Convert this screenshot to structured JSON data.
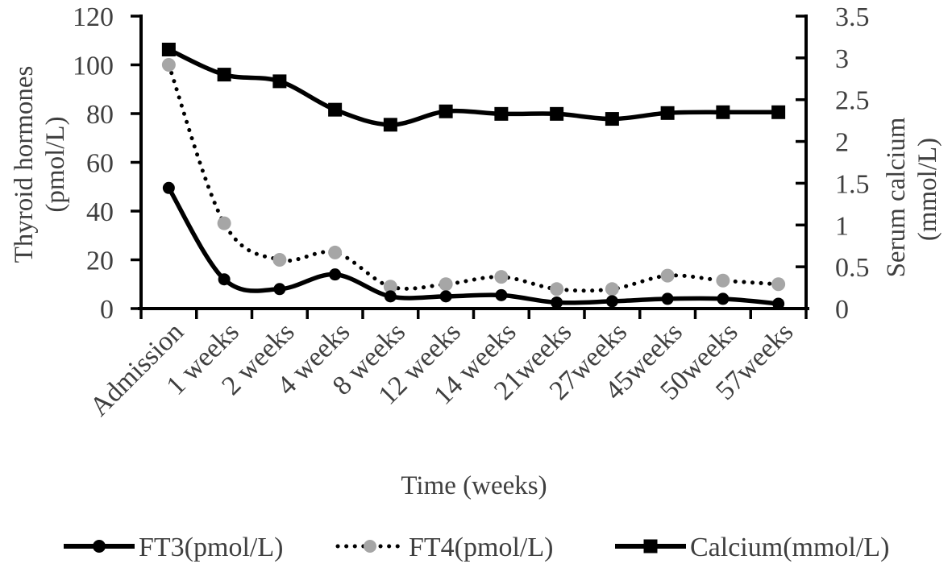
{
  "chart_data": {
    "type": "line",
    "title": "",
    "categories": [
      "Admission",
      "1 weeks",
      "2 weeks",
      "4 weeks",
      "8 weeks",
      "12 weeks",
      "14 weeks",
      "21weeks",
      "27weeks",
      "45weeks",
      "50weeks",
      "57weeks"
    ],
    "xlabel": "Time  (weeks)",
    "y_axis_left": {
      "title_line1": "Thyroid hormones",
      "title_line2": "(pmol/L)",
      "min": 0,
      "max": 120,
      "tick_interval": 20,
      "tick_labels": [
        "0",
        "20",
        "40",
        "60",
        "80",
        "100",
        "120"
      ]
    },
    "y_axis_right": {
      "title_line1": "Serum calcium",
      "title_line2": "(mmol/L)",
      "min": 0,
      "max": 3.5,
      "tick_interval": 0.5,
      "tick_labels": [
        "0",
        "0.5",
        "1",
        "1.5",
        "2",
        "2.5",
        "3",
        "3.5"
      ]
    },
    "series": [
      {
        "name": "FT3(pmol/L)",
        "axis": "left",
        "line_style": "solid",
        "marker": "circle",
        "line_color": "#000000",
        "marker_color": "#000000",
        "values": [
          49.5,
          12,
          8,
          14,
          5,
          5,
          5.5,
          2.5,
          3,
          4,
          4,
          2
        ]
      },
      {
        "name": "FT4(pmol/L)",
        "axis": "left",
        "line_style": "dotted",
        "marker": "circle",
        "line_color": "#000000",
        "marker_color": "#a6a6a6",
        "values": [
          100,
          35,
          20,
          23,
          9,
          10,
          13,
          8,
          8,
          13.5,
          11.5,
          10
        ]
      },
      {
        "name": "Calcium(mmol/L)",
        "axis": "right",
        "line_style": "solid",
        "marker": "square",
        "line_color": "#000000",
        "marker_color": "#000000",
        "values": [
          3.1,
          2.8,
          2.72,
          2.38,
          2.2,
          2.36,
          2.33,
          2.33,
          2.27,
          2.34,
          2.35,
          2.35
        ]
      }
    ],
    "legend": {
      "position": "bottom",
      "entries": [
        "FT3(pmol/L)",
        "FT4(pmol/L)",
        "Calcium(mmol/L)"
      ]
    },
    "grid": "off",
    "text_color": "#3f3f3f",
    "axis_color": "#000000"
  }
}
